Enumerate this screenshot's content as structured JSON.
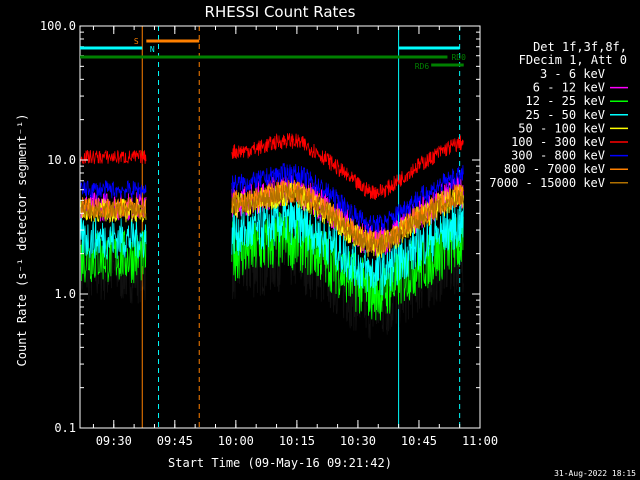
{
  "chart_data": {
    "type": "line",
    "title": "RHESSI Count Rates",
    "ylabel": "Count Rate (s⁻¹ detector segment⁻¹)",
    "xlabel": "Start Time (09-May-16 09:21:42)",
    "y_scale": "log",
    "ylim": [
      0.1,
      100.0
    ],
    "xlim": [
      "09:21:42",
      "11:00"
    ],
    "x_ticks": [
      "09:30",
      "09:45",
      "10:00",
      "10:15",
      "10:30",
      "10:45",
      "11:00"
    ],
    "y_ticks": [
      "0.1",
      "1.0",
      "10.0",
      "100.0"
    ],
    "legend_header": [
      "Det 1f,3f,8f,",
      "FDecim 1, Att 0"
    ],
    "legend_placement": "right",
    "series": [
      {
        "name": "3 - 6 keV",
        "color": "#000000",
        "level": 1.5,
        "amp": 0.55
      },
      {
        "name": "6 - 12 keV",
        "color": "#ff00ff",
        "level": 4.5,
        "amp": 0.25
      },
      {
        "name": "12 - 25 keV",
        "color": "#00ff00",
        "level": 1.9,
        "amp": 0.45
      },
      {
        "name": "25 - 50 keV",
        "color": "#00ffff",
        "level": 2.6,
        "amp": 0.35
      },
      {
        "name": "50 - 100 keV",
        "color": "#ffff00",
        "level": 4.2,
        "amp": 0.2
      },
      {
        "name": "100 - 300 keV",
        "color": "#ff0000",
        "level": 10.5,
        "amp": 0.12
      },
      {
        "name": "300 - 800 keV",
        "color": "#0000ff",
        "level": 6.0,
        "amp": 0.15
      },
      {
        "name": "800 - 7000 keV",
        "color": "#ff8000",
        "level": 4.4,
        "amp": 0.18
      },
      {
        "name": "7000 - 15000 keV",
        "color": "#b07000",
        "level": 4.2,
        "amp": 0.15
      }
    ],
    "data_gap": [
      "09:38",
      "09:59"
    ],
    "flags": [
      {
        "label": "S",
        "color": "#ff8000",
        "start": "09:38",
        "end": "09:51"
      },
      {
        "label": "N",
        "color": "#00ffff",
        "start": "09:21:42",
        "end": "09:37"
      },
      {
        "label": "",
        "color": "#00ffff",
        "start": "10:40",
        "end": "10:55"
      },
      {
        "label": "RD0",
        "color": "#008000",
        "start": "09:21:42",
        "end": "10:52"
      },
      {
        "label": "RD6",
        "color": "#008000",
        "start": "10:48",
        "end": "10:56"
      }
    ],
    "vlines": [
      {
        "time": "09:21:42",
        "color": "#00ffff",
        "style": "solid"
      },
      {
        "time": "09:37",
        "color": "#ff8000",
        "style": "solid"
      },
      {
        "time": "09:41",
        "color": "#00ffff",
        "style": "dashed"
      },
      {
        "time": "09:51",
        "color": "#ff8000",
        "style": "dashed"
      },
      {
        "time": "10:40",
        "color": "#00ffff",
        "style": "solid"
      },
      {
        "time": "10:55",
        "color": "#00ffff",
        "style": "dashed"
      }
    ]
  },
  "footer": {
    "date": "31-Aug-2022 18:15"
  }
}
